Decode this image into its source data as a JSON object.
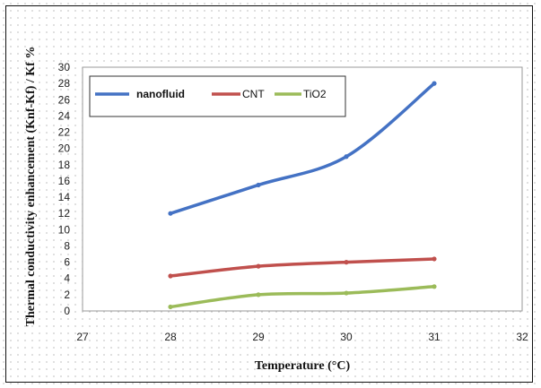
{
  "chart_data": {
    "type": "line",
    "title": "",
    "xlabel": "Temperature (°C)",
    "ylabel": "Thermal conductivity enhancement (Knf-Kf) / Kf %",
    "x_ticks": [
      27,
      28,
      29,
      30,
      31,
      32
    ],
    "y_ticks": [
      0,
      2,
      4,
      6,
      8,
      10,
      12,
      14,
      16,
      18,
      20,
      22,
      24,
      26,
      28,
      30
    ],
    "xlim": [
      27,
      32
    ],
    "ylim": [
      0,
      30
    ],
    "grid": false,
    "legend_position": "top-left",
    "x": [
      28,
      29,
      30,
      31
    ],
    "series": [
      {
        "name": "nanofluid",
        "color": "#4472c4",
        "values": [
          12,
          15.5,
          19,
          28
        ]
      },
      {
        "name": "CNT",
        "color": "#c0504d",
        "values": [
          4.3,
          5.5,
          6,
          6.4
        ]
      },
      {
        "name": "TiO2",
        "color": "#9bbb59",
        "values": [
          0.5,
          2,
          2.2,
          3
        ]
      }
    ]
  }
}
